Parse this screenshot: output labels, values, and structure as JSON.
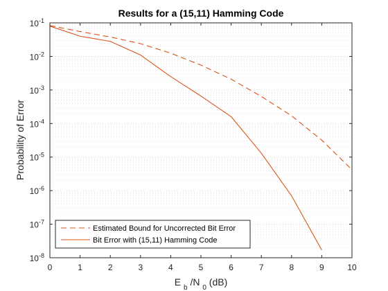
{
  "chart_data": {
    "type": "line",
    "title": "Results for a (15,11) Hamming Code",
    "xlabel": {
      "main": "E",
      "sub1": "b",
      "mid": "/N",
      "sub2": "0",
      "tail": "(dB)"
    },
    "ylabel": "Probability of Error",
    "x_ticks": [
      "0",
      "1",
      "2",
      "3",
      "4",
      "5",
      "6",
      "7",
      "8",
      "9",
      "10"
    ],
    "y_ticks": [
      {
        "base": "10",
        "exp": "-8"
      },
      {
        "base": "10",
        "exp": "-7"
      },
      {
        "base": "10",
        "exp": "-6"
      },
      {
        "base": "10",
        "exp": "-5"
      },
      {
        "base": "10",
        "exp": "-4"
      },
      {
        "base": "10",
        "exp": "-3"
      },
      {
        "base": "10",
        "exp": "-2"
      },
      {
        "base": "10",
        "exp": "-1"
      }
    ],
    "xlim": [
      0,
      10
    ],
    "ylim": [
      1e-08,
      0.1
    ],
    "y_scale": "log",
    "grid": "y-major-and-minor-dotted",
    "legend_position": "bottom-left",
    "series": [
      {
        "name": "Estimated Bound for Uncorrected Bit Error",
        "line_style": "dashed",
        "color": "#d95319",
        "x": [
          0,
          1,
          2,
          3,
          4,
          5,
          6,
          7,
          8,
          9,
          10
        ],
        "y": [
          0.083,
          0.055,
          0.038,
          0.024,
          0.0125,
          0.0055,
          0.0021,
          0.00064,
          0.00017,
          3.2e-05,
          4.2e-06
        ]
      },
      {
        "name": "Bit Error with (15,11) Hamming Code",
        "line_style": "solid",
        "color": "#d95319",
        "x": [
          0,
          1,
          2,
          3,
          4,
          5,
          6,
          7,
          8,
          9
        ],
        "y": [
          0.08,
          0.04,
          0.028,
          0.011,
          0.0025,
          0.00066,
          0.00016,
          1.3e-05,
          7e-07,
          1.7e-08
        ]
      }
    ]
  }
}
